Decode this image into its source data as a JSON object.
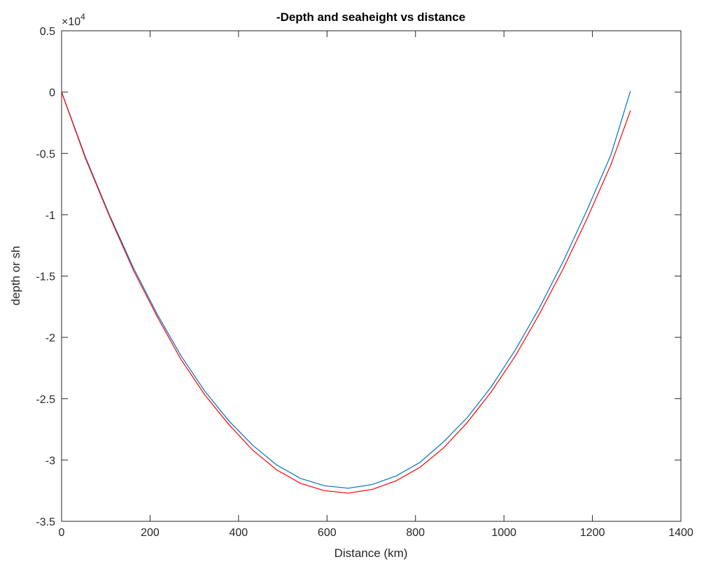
{
  "chart_data": {
    "type": "line",
    "title": "-Depth and seaheight vs distance",
    "xlabel": "Distance (km)",
    "ylabel": "depth or sh",
    "xlim": [
      0,
      1400
    ],
    "ylim": [
      -35000,
      5000
    ],
    "x_ticks": [
      0,
      200,
      400,
      600,
      800,
      1000,
      1200,
      1400
    ],
    "x_tick_labels": [
      "0",
      "200",
      "400",
      "600",
      "800",
      "1000",
      "1200",
      "1400"
    ],
    "y_ticks": [
      5000,
      0,
      -5000,
      -10000,
      -15000,
      -20000,
      -25000,
      -30000,
      -35000
    ],
    "y_tick_labels": [
      "0.5",
      "0",
      "-0.5",
      "-1",
      "-1.5",
      "-2",
      "-2.5",
      "-3",
      "-3.5"
    ],
    "y_multiplier": {
      "base": "×10",
      "exponent": "4"
    },
    "grid": false,
    "x": [
      0,
      54,
      108,
      162,
      216,
      270,
      324,
      378,
      432,
      486,
      540,
      594,
      648,
      702,
      756,
      810,
      864,
      918,
      972,
      1026,
      1080,
      1134,
      1188,
      1242,
      1286
    ],
    "series": [
      {
        "color": "#0072BD",
        "values": [
          0,
          -5300,
          -10000,
          -14300,
          -18100,
          -21500,
          -24400,
          -26800,
          -28800,
          -30400,
          -31500,
          -32100,
          -32300,
          -32000,
          -31300,
          -30200,
          -28500,
          -26500,
          -24000,
          -21000,
          -17600,
          -13800,
          -9600,
          -5100,
          100
        ]
      },
      {
        "color": "#FF0000",
        "values": [
          0,
          -5400,
          -10100,
          -14500,
          -18300,
          -21800,
          -24700,
          -27100,
          -29200,
          -30800,
          -31900,
          -32500,
          -32700,
          -32400,
          -31700,
          -30600,
          -29000,
          -26900,
          -24400,
          -21500,
          -18100,
          -14400,
          -10300,
          -5900,
          -1500
        ]
      }
    ]
  }
}
